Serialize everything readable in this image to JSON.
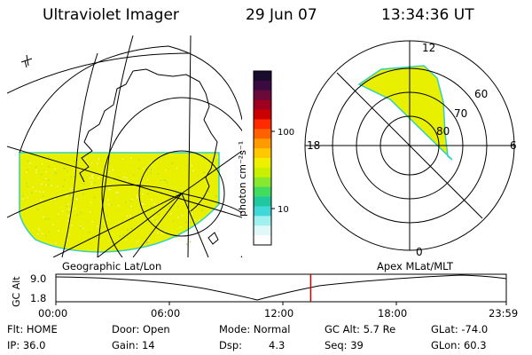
{
  "header": {
    "title": "Ultraviolet Imager",
    "date": "29 Jun 07",
    "time": "13:34:36 UT"
  },
  "colorbar": {
    "unit_label": "photon cm⁻²s⁻¹",
    "ticks": [
      "100",
      "10"
    ],
    "colors": [
      "#1a0a2e",
      "#3a0a40",
      "#6a0a3a",
      "#a00020",
      "#cc0000",
      "#ff2a00",
      "#ff6000",
      "#ff9a00",
      "#ffc800",
      "#eef000",
      "#c8f000",
      "#88e830",
      "#40dc60",
      "#20c8a0",
      "#40d8d8",
      "#a0f0f0",
      "#e0f8f8",
      "#ffffff"
    ]
  },
  "geo_map": {
    "fill_color": "#e8f000",
    "edge_color": "#30d0c0"
  },
  "polar_plot": {
    "labels": {
      "top": "12",
      "bottom": "0",
      "left": "18",
      "right": "6"
    },
    "ring_labels": [
      "60",
      "70",
      "80"
    ],
    "fill_color": "#e8f000"
  },
  "timeline": {
    "left_title": "Geographic Lat/Lon",
    "right_title": "Apex MLat/MLT",
    "axis_label": "GC Alt",
    "y_ticks": [
      "9.0",
      "1.8"
    ],
    "x_ticks": [
      "00:00",
      "06:00",
      "12:00",
      "18:00",
      "23:59"
    ],
    "marker_color": "#cc0000",
    "marker_time_hours": 13.576
  },
  "info": {
    "flt": "Flt: HOME",
    "ip": "IP: 36.0",
    "door": "Door: Open",
    "gain": "Gain: 14",
    "mode": "Mode: Normal",
    "dsp_label": "Dsp:",
    "dsp_value": "4.3",
    "gcalt": "GC Alt: 5.7 Re",
    "seq": "Seq: 39",
    "glat": "GLat: -74.0",
    "glon": "GLon: 60.3"
  }
}
